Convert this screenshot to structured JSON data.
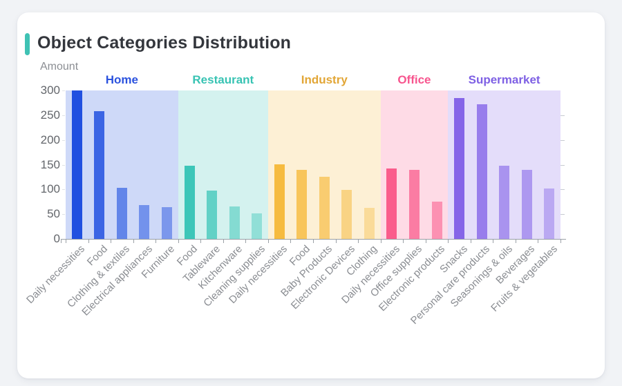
{
  "window": {
    "background": "#f1f3f6"
  },
  "card": {
    "title": "Object Categories Distribution",
    "accent_color": "#3fc2b4"
  },
  "chart_data": {
    "type": "bar",
    "title": "Object Categories Distribution",
    "ylabel": "Amount",
    "xlabel": "",
    "ylim": [
      0,
      300
    ],
    "yticks": [
      0,
      50,
      100,
      150,
      200,
      250,
      300
    ],
    "grid": false,
    "legend_position": "group-labels-above-bands",
    "band_opacity": 0.22,
    "axis_color": "#9aa0a6",
    "groups": [
      {
        "name": "Home",
        "label_color": "#2b52de",
        "bar_color": "#2150e0",
        "categories": [
          "Daily necessities",
          "Food",
          "Clothing & textiles",
          "Electrical appliances",
          "Furniture"
        ],
        "values": [
          300,
          258,
          103,
          69,
          64
        ],
        "bar_opacities": [
          1,
          0.85,
          0.62,
          0.52,
          0.48
        ]
      },
      {
        "name": "Restaurant",
        "label_color": "#38c3b3",
        "bar_color": "#3cc6b8",
        "categories": [
          "Food",
          "Tableware",
          "Kitchenware",
          "Cleaning supplies"
        ],
        "values": [
          148,
          97,
          65,
          51
        ],
        "bar_opacities": [
          1,
          0.75,
          0.52,
          0.44
        ]
      },
      {
        "name": "Industry",
        "label_color": "#e2a636",
        "bar_color": "#f6bb3f",
        "categories": [
          "Daily necessities",
          "Food",
          "Baby Products",
          "Electronic Devices",
          "Clothing"
        ],
        "values": [
          151,
          139,
          126,
          99,
          63
        ],
        "bar_opacities": [
          1,
          0.82,
          0.68,
          0.54,
          0.4
        ]
      },
      {
        "name": "Office",
        "label_color": "#f7558e",
        "bar_color": "#fa5c8c",
        "categories": [
          "Daily necessities",
          "Office supplies",
          "Electronic products"
        ],
        "values": [
          142,
          139,
          75
        ],
        "bar_opacities": [
          1,
          0.75,
          0.58
        ]
      },
      {
        "name": "Supermarket",
        "label_color": "#7e60e4",
        "bar_color": "#8565e8",
        "categories": [
          "Snacks",
          "Personal care products",
          "Seasonings & oils",
          "Beverages",
          "Fruits & vegetables"
        ],
        "values": [
          285,
          272,
          148,
          140,
          102
        ],
        "bar_opacities": [
          1,
          0.8,
          0.62,
          0.58,
          0.44
        ]
      }
    ]
  }
}
